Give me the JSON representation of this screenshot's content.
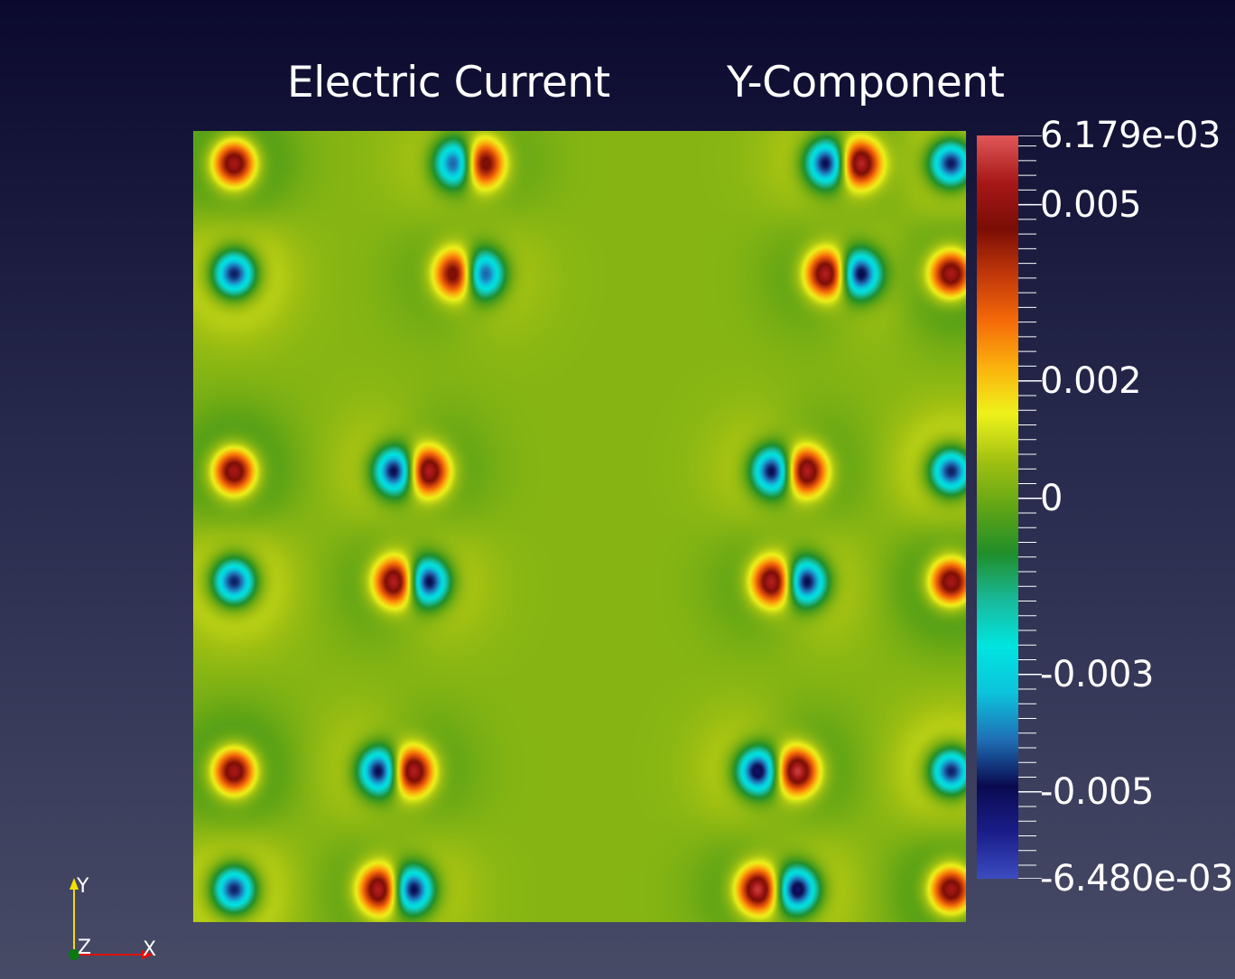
{
  "titles": {
    "left": "Electric Current",
    "right": "Y-Component"
  },
  "colorbar": {
    "max_label": "6.179e-03",
    "min_label": "-6.480e-03",
    "range": [
      -0.00648,
      0.006179
    ],
    "ticks": [
      {
        "value": 0.005,
        "label": "0.005"
      },
      {
        "value": 0.002,
        "label": "0.002"
      },
      {
        "value": 0,
        "label": "0"
      },
      {
        "value": -0.003,
        "label": "-0.003"
      },
      {
        "value": -0.005,
        "label": "-0.005"
      }
    ],
    "colormap": [
      "#3b4cc0",
      "#1a1d8a",
      "#0a0a4f",
      "#1f6fb5",
      "#0cc3dc",
      "#00e5e0",
      "#19b99a",
      "#1f8e2a",
      "#61a515",
      "#a2c112",
      "#eef21a",
      "#fbb20e",
      "#f56a08",
      "#c2380a",
      "#7a0d05",
      "#a81818",
      "#e05858"
    ]
  },
  "axes_gizmo": {
    "y": "Y",
    "z": "Z",
    "x": "X"
  },
  "chart_data": {
    "type": "heatmap",
    "title": "Electric Current Y-Component",
    "field_range": [
      -0.00648,
      0.006179
    ],
    "background_value": 0.0003,
    "dipoles": [
      {
        "x": 0.04,
        "y": 0.96,
        "pos_top": true
      },
      {
        "x": 0.04,
        "y": 0.82,
        "pos_top": false
      },
      {
        "x": 0.33,
        "y": 0.96,
        "pos_top": false
      },
      {
        "x": 0.33,
        "y": 0.82,
        "pos_top": true
      },
      {
        "x": 0.36,
        "y": 0.96,
        "pos_top": true
      },
      {
        "x": 0.36,
        "y": 0.82,
        "pos_top": false
      },
      {
        "x": 0.81,
        "y": 0.96,
        "pos_top": false
      },
      {
        "x": 0.81,
        "y": 0.82,
        "pos_top": true
      },
      {
        "x": 0.85,
        "y": 0.96,
        "pos_top": true
      },
      {
        "x": 0.85,
        "y": 0.82,
        "pos_top": false
      },
      {
        "x": 0.97,
        "y": 0.96,
        "pos_top": false
      },
      {
        "x": 0.97,
        "y": 0.82,
        "pos_top": true
      },
      {
        "x": 0.04,
        "y": 0.57,
        "pos_top": true
      },
      {
        "x": 0.04,
        "y": 0.43,
        "pos_top": false
      },
      {
        "x": 0.25,
        "y": 0.57,
        "pos_top": false
      },
      {
        "x": 0.25,
        "y": 0.43,
        "pos_top": true
      },
      {
        "x": 0.29,
        "y": 0.57,
        "pos_top": true
      },
      {
        "x": 0.29,
        "y": 0.43,
        "pos_top": false
      },
      {
        "x": 0.74,
        "y": 0.57,
        "pos_top": false
      },
      {
        "x": 0.74,
        "y": 0.43,
        "pos_top": true
      },
      {
        "x": 0.78,
        "y": 0.57,
        "pos_top": true
      },
      {
        "x": 0.78,
        "y": 0.43,
        "pos_top": false
      },
      {
        "x": 0.97,
        "y": 0.57,
        "pos_top": false
      },
      {
        "x": 0.97,
        "y": 0.43,
        "pos_top": true
      },
      {
        "x": 0.04,
        "y": 0.19,
        "pos_top": true
      },
      {
        "x": 0.04,
        "y": 0.04,
        "pos_top": false
      },
      {
        "x": 0.23,
        "y": 0.19,
        "pos_top": false
      },
      {
        "x": 0.23,
        "y": 0.04,
        "pos_top": true
      },
      {
        "x": 0.27,
        "y": 0.19,
        "pos_top": true
      },
      {
        "x": 0.27,
        "y": 0.04,
        "pos_top": false
      },
      {
        "x": 0.72,
        "y": 0.19,
        "pos_top": false
      },
      {
        "x": 0.72,
        "y": 0.04,
        "pos_top": true
      },
      {
        "x": 0.77,
        "y": 0.19,
        "pos_top": true
      },
      {
        "x": 0.77,
        "y": 0.04,
        "pos_top": false
      },
      {
        "x": 0.97,
        "y": 0.19,
        "pos_top": false
      },
      {
        "x": 0.97,
        "y": 0.04,
        "pos_top": true
      }
    ]
  }
}
